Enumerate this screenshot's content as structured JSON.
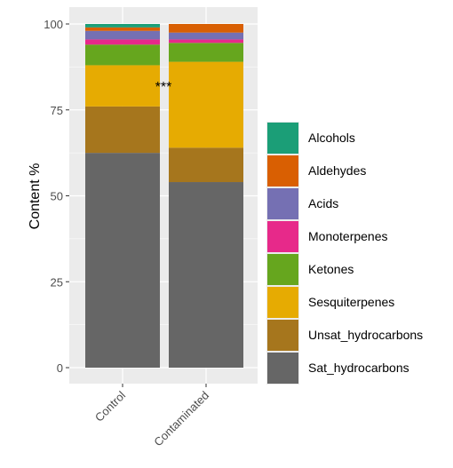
{
  "chart_data": {
    "type": "stacked_bar",
    "categories": [
      "Control",
      "Contaminated"
    ],
    "y_label": "Content %",
    "annotation": "***",
    "ylim": [
      0,
      100
    ],
    "yticks": [
      0,
      25,
      50,
      75,
      100
    ],
    "grid": true,
    "series": [
      {
        "name": "Sat_hydrocarbons",
        "color": "#666666",
        "values": [
          62.5,
          54
        ]
      },
      {
        "name": "Unsat_hydrocarbons",
        "color": "#a6761d",
        "values": [
          13.5,
          10
        ]
      },
      {
        "name": "Sesquiterpenes",
        "color": "#e6ab02",
        "values": [
          12,
          25
        ]
      },
      {
        "name": "Ketones",
        "color": "#66a61e",
        "values": [
          6,
          5.5
        ]
      },
      {
        "name": "Monoterpenes",
        "color": "#e7298a",
        "values": [
          1.5,
          1
        ]
      },
      {
        "name": "Acids",
        "color": "#7570b3",
        "values": [
          2.5,
          2
        ]
      },
      {
        "name": "Aldehydes",
        "color": "#d95f02",
        "values": [
          1,
          2.5
        ]
      },
      {
        "name": "Alcohols",
        "color": "#1b9e77",
        "values": [
          1,
          0
        ]
      }
    ]
  }
}
